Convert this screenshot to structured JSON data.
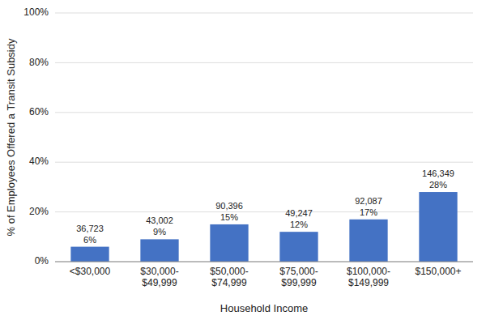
{
  "chart_data": {
    "type": "bar",
    "categories": [
      "<$30,000",
      "$30,000-\n$49,999",
      "$50,000-\n$74,999",
      "$75,000-\n$99,999",
      "$100,000-\n$149,999",
      "$150,000+"
    ],
    "values": [
      6,
      9,
      15,
      12,
      17,
      28
    ],
    "value_labels": [
      "6%",
      "9%",
      "15%",
      "12%",
      "17%",
      "28%"
    ],
    "counts": [
      "36,723",
      "43,002",
      "90,396",
      "49,247",
      "92,087",
      "146,349"
    ],
    "data_labels": true,
    "color": "#4472C4",
    "xlabel": "Household Income",
    "ylabel": "% of Employees Offered a Transit Subsidy",
    "ylim": [
      0,
      100
    ],
    "yticks": [
      {
        "value": 0,
        "label": "0%"
      },
      {
        "value": 20,
        "label": "20%"
      },
      {
        "value": 40,
        "label": "40%"
      },
      {
        "value": 60,
        "label": "60%"
      },
      {
        "value": 80,
        "label": "80%"
      },
      {
        "value": 100,
        "label": "100%"
      }
    ],
    "grid": true
  }
}
